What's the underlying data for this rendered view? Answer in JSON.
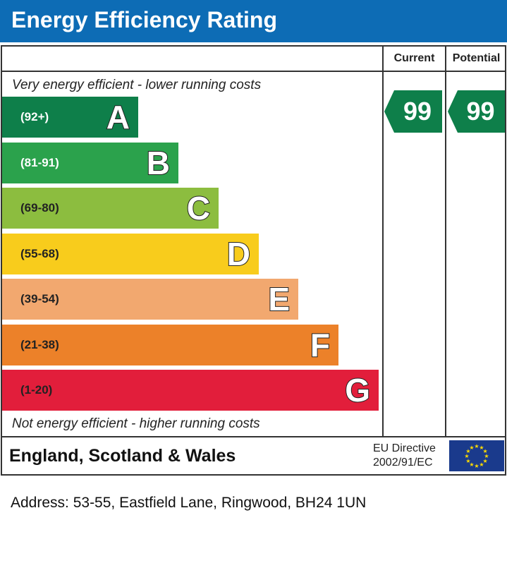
{
  "header": {
    "title": "Energy Efficiency Rating",
    "color": "#0d6cb5"
  },
  "columns": {
    "current": "Current",
    "potential": "Potential"
  },
  "notes": {
    "top": "Very energy efficient - lower running costs",
    "bottom": "Not energy efficient - higher running costs"
  },
  "bands": [
    {
      "letter": "A",
      "range": "(92+)",
      "color": "#0e7f4a",
      "text_color": "#ffffff"
    },
    {
      "letter": "B",
      "range": "(81-91)",
      "color": "#2ba24c",
      "text_color": "#ffffff"
    },
    {
      "letter": "C",
      "range": "(69-80)",
      "color": "#8cbd3f",
      "text_color": "#222222"
    },
    {
      "letter": "D",
      "range": "(55-68)",
      "color": "#f8cc1c",
      "text_color": "#222222"
    },
    {
      "letter": "E",
      "range": "(39-54)",
      "color": "#f2a86f",
      "text_color": "#222222"
    },
    {
      "letter": "F",
      "range": "(21-38)",
      "color": "#ec8129",
      "text_color": "#222222"
    },
    {
      "letter": "G",
      "range": "(1-20)",
      "color": "#e21e3b",
      "text_color": "#222222"
    }
  ],
  "ratings": {
    "current": {
      "value": "99",
      "color": "#0e7f4a"
    },
    "potential": {
      "value": "99",
      "color": "#0e7f4a"
    }
  },
  "footer": {
    "region": "England, Scotland & Wales",
    "directive_line1": "EU Directive",
    "directive_line2": "2002/91/EC",
    "flag_icon": "eu-flag-icon"
  },
  "address": "Address: 53-55, Eastfield Lane, Ringwood, BH24 1UN"
}
